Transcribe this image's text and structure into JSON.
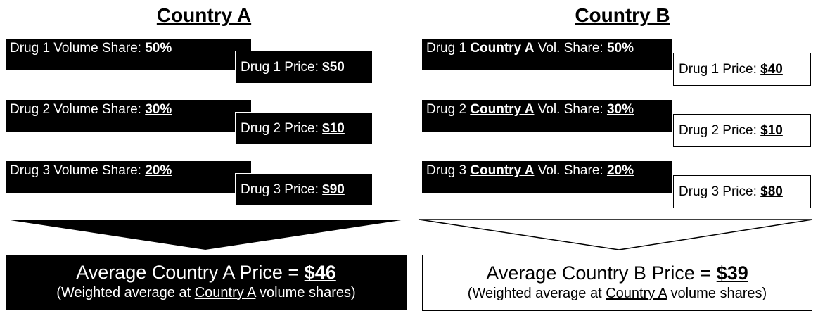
{
  "country_a": {
    "title": "Country A",
    "rows": [
      {
        "share_label": "Drug 1 Volume Share:",
        "share": "50%",
        "price_label": "Drug 1 Price:",
        "price": "$50"
      },
      {
        "share_label": "Drug 2 Volume Share:",
        "share": "30%",
        "price_label": "Drug 2 Price:",
        "price": "$10"
      },
      {
        "share_label": "Drug 3 Volume Share:",
        "share": "20%",
        "price_label": "Drug 3 Price:",
        "price": "$90"
      }
    ],
    "summary": {
      "label": "Average Country A Price =",
      "value": "$46",
      "note_before": "(Weighted average at",
      "note_ref": "Country A",
      "note_after": "volume shares)"
    }
  },
  "country_b": {
    "title": "Country B",
    "rows": [
      {
        "drug": "Drug 1",
        "ref": "Country A",
        "share_label": "Vol. Share:",
        "share": "50%",
        "price_label": "Drug 1 Price:",
        "price": "$40"
      },
      {
        "drug": "Drug 2",
        "ref": "Country A",
        "share_label": "Vol. Share:",
        "share": "30%",
        "price_label": "Drug 2 Price:",
        "price": "$10"
      },
      {
        "drug": "Drug 3",
        "ref": "Country A",
        "share_label": "Vol. Share:",
        "share": "20%",
        "price_label": "Drug 3 Price:",
        "price": "$80"
      }
    ],
    "summary": {
      "label": "Average Country B Price =",
      "value": "$39",
      "note_before": "(Weighted average at",
      "note_ref": "Country A",
      "note_after": "volume shares)"
    }
  }
}
